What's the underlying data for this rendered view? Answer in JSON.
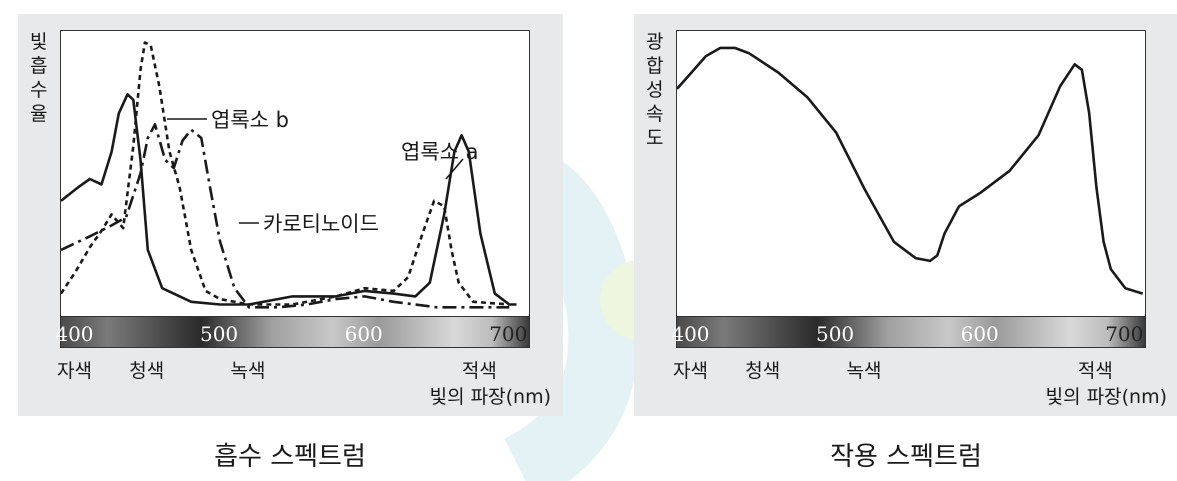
{
  "chart_data": [
    {
      "type": "line",
      "title": "흡수 스펙트럼",
      "ylabel": "빛 흡수율",
      "xlabel": "빛의 파장(nm)",
      "xlim": [
        390,
        715
      ],
      "ylim": [
        0,
        1
      ],
      "x_ticks": [
        "400",
        "500",
        "600",
        "700"
      ],
      "color_labels": [
        {
          "text": "자색",
          "x": 400
        },
        {
          "text": "청색",
          "x": 450
        },
        {
          "text": "녹색",
          "x": 520
        },
        {
          "text": "적색",
          "x": 680
        }
      ],
      "series": [
        {
          "name": "엽록소 a",
          "style": "solid",
          "x": [
            390,
            402,
            410,
            418,
            425,
            430,
            436,
            440,
            445,
            450,
            460,
            480,
            500,
            520,
            550,
            580,
            600,
            620,
            635,
            645,
            655,
            662,
            667,
            672,
            680,
            690,
            700,
            705
          ],
          "y": [
            0.4,
            0.45,
            0.48,
            0.46,
            0.58,
            0.72,
            0.79,
            0.77,
            0.55,
            0.22,
            0.08,
            0.03,
            0.02,
            0.02,
            0.05,
            0.05,
            0.07,
            0.06,
            0.05,
            0.1,
            0.35,
            0.58,
            0.64,
            0.58,
            0.28,
            0.06,
            0.02,
            0.02
          ]
        },
        {
          "name": "엽록소 b",
          "style": "dashed",
          "x": [
            390,
            400,
            410,
            418,
            425,
            433,
            440,
            445,
            448,
            452,
            458,
            465,
            472,
            480,
            490,
            500,
            520,
            550,
            580,
            600,
            620,
            630,
            640,
            648,
            655,
            660,
            665,
            675,
            700
          ],
          "y": [
            0.06,
            0.14,
            0.23,
            0.29,
            0.35,
            0.3,
            0.6,
            0.88,
            0.98,
            0.97,
            0.82,
            0.58,
            0.45,
            0.22,
            0.07,
            0.04,
            0.02,
            0.02,
            0.05,
            0.08,
            0.07,
            0.12,
            0.28,
            0.4,
            0.38,
            0.22,
            0.1,
            0.03,
            0.02
          ]
        },
        {
          "name": "카로티노이드",
          "style": "dashdot",
          "x": [
            390,
            410,
            425,
            435,
            445,
            450,
            455,
            462,
            468,
            474,
            480,
            487,
            493,
            500,
            510,
            520,
            540,
            560,
            580,
            600,
            620,
            650,
            700
          ],
          "y": [
            0.22,
            0.27,
            0.31,
            0.34,
            0.5,
            0.63,
            0.68,
            0.55,
            0.52,
            0.62,
            0.66,
            0.63,
            0.45,
            0.25,
            0.08,
            0.01,
            0.01,
            0.02,
            0.04,
            0.05,
            0.03,
            0.01,
            0.01
          ]
        }
      ]
    },
    {
      "type": "line",
      "title": "작용 스펙트럼",
      "ylabel": "광합성 속도",
      "xlabel": "빛의 파장(nm)",
      "xlim": [
        390,
        715
      ],
      "ylim": [
        0,
        1
      ],
      "x_ticks": [
        "400",
        "500",
        "600",
        "700"
      ],
      "color_labels": [
        {
          "text": "자색",
          "x": 400
        },
        {
          "text": "청색",
          "x": 450
        },
        {
          "text": "녹색",
          "x": 520
        },
        {
          "text": "적색",
          "x": 680
        }
      ],
      "series": [
        {
          "name": "",
          "style": "solid",
          "x": [
            390,
            400,
            410,
            420,
            430,
            440,
            460,
            480,
            500,
            520,
            540,
            555,
            565,
            570,
            575,
            585,
            600,
            620,
            640,
            655,
            665,
            670,
            675,
            680,
            685,
            690,
            700,
            712
          ],
          "y": [
            0.81,
            0.87,
            0.93,
            0.96,
            0.96,
            0.94,
            0.87,
            0.78,
            0.65,
            0.44,
            0.25,
            0.19,
            0.18,
            0.2,
            0.28,
            0.38,
            0.43,
            0.51,
            0.64,
            0.82,
            0.9,
            0.88,
            0.72,
            0.45,
            0.25,
            0.15,
            0.08,
            0.06
          ]
        }
      ]
    }
  ]
}
